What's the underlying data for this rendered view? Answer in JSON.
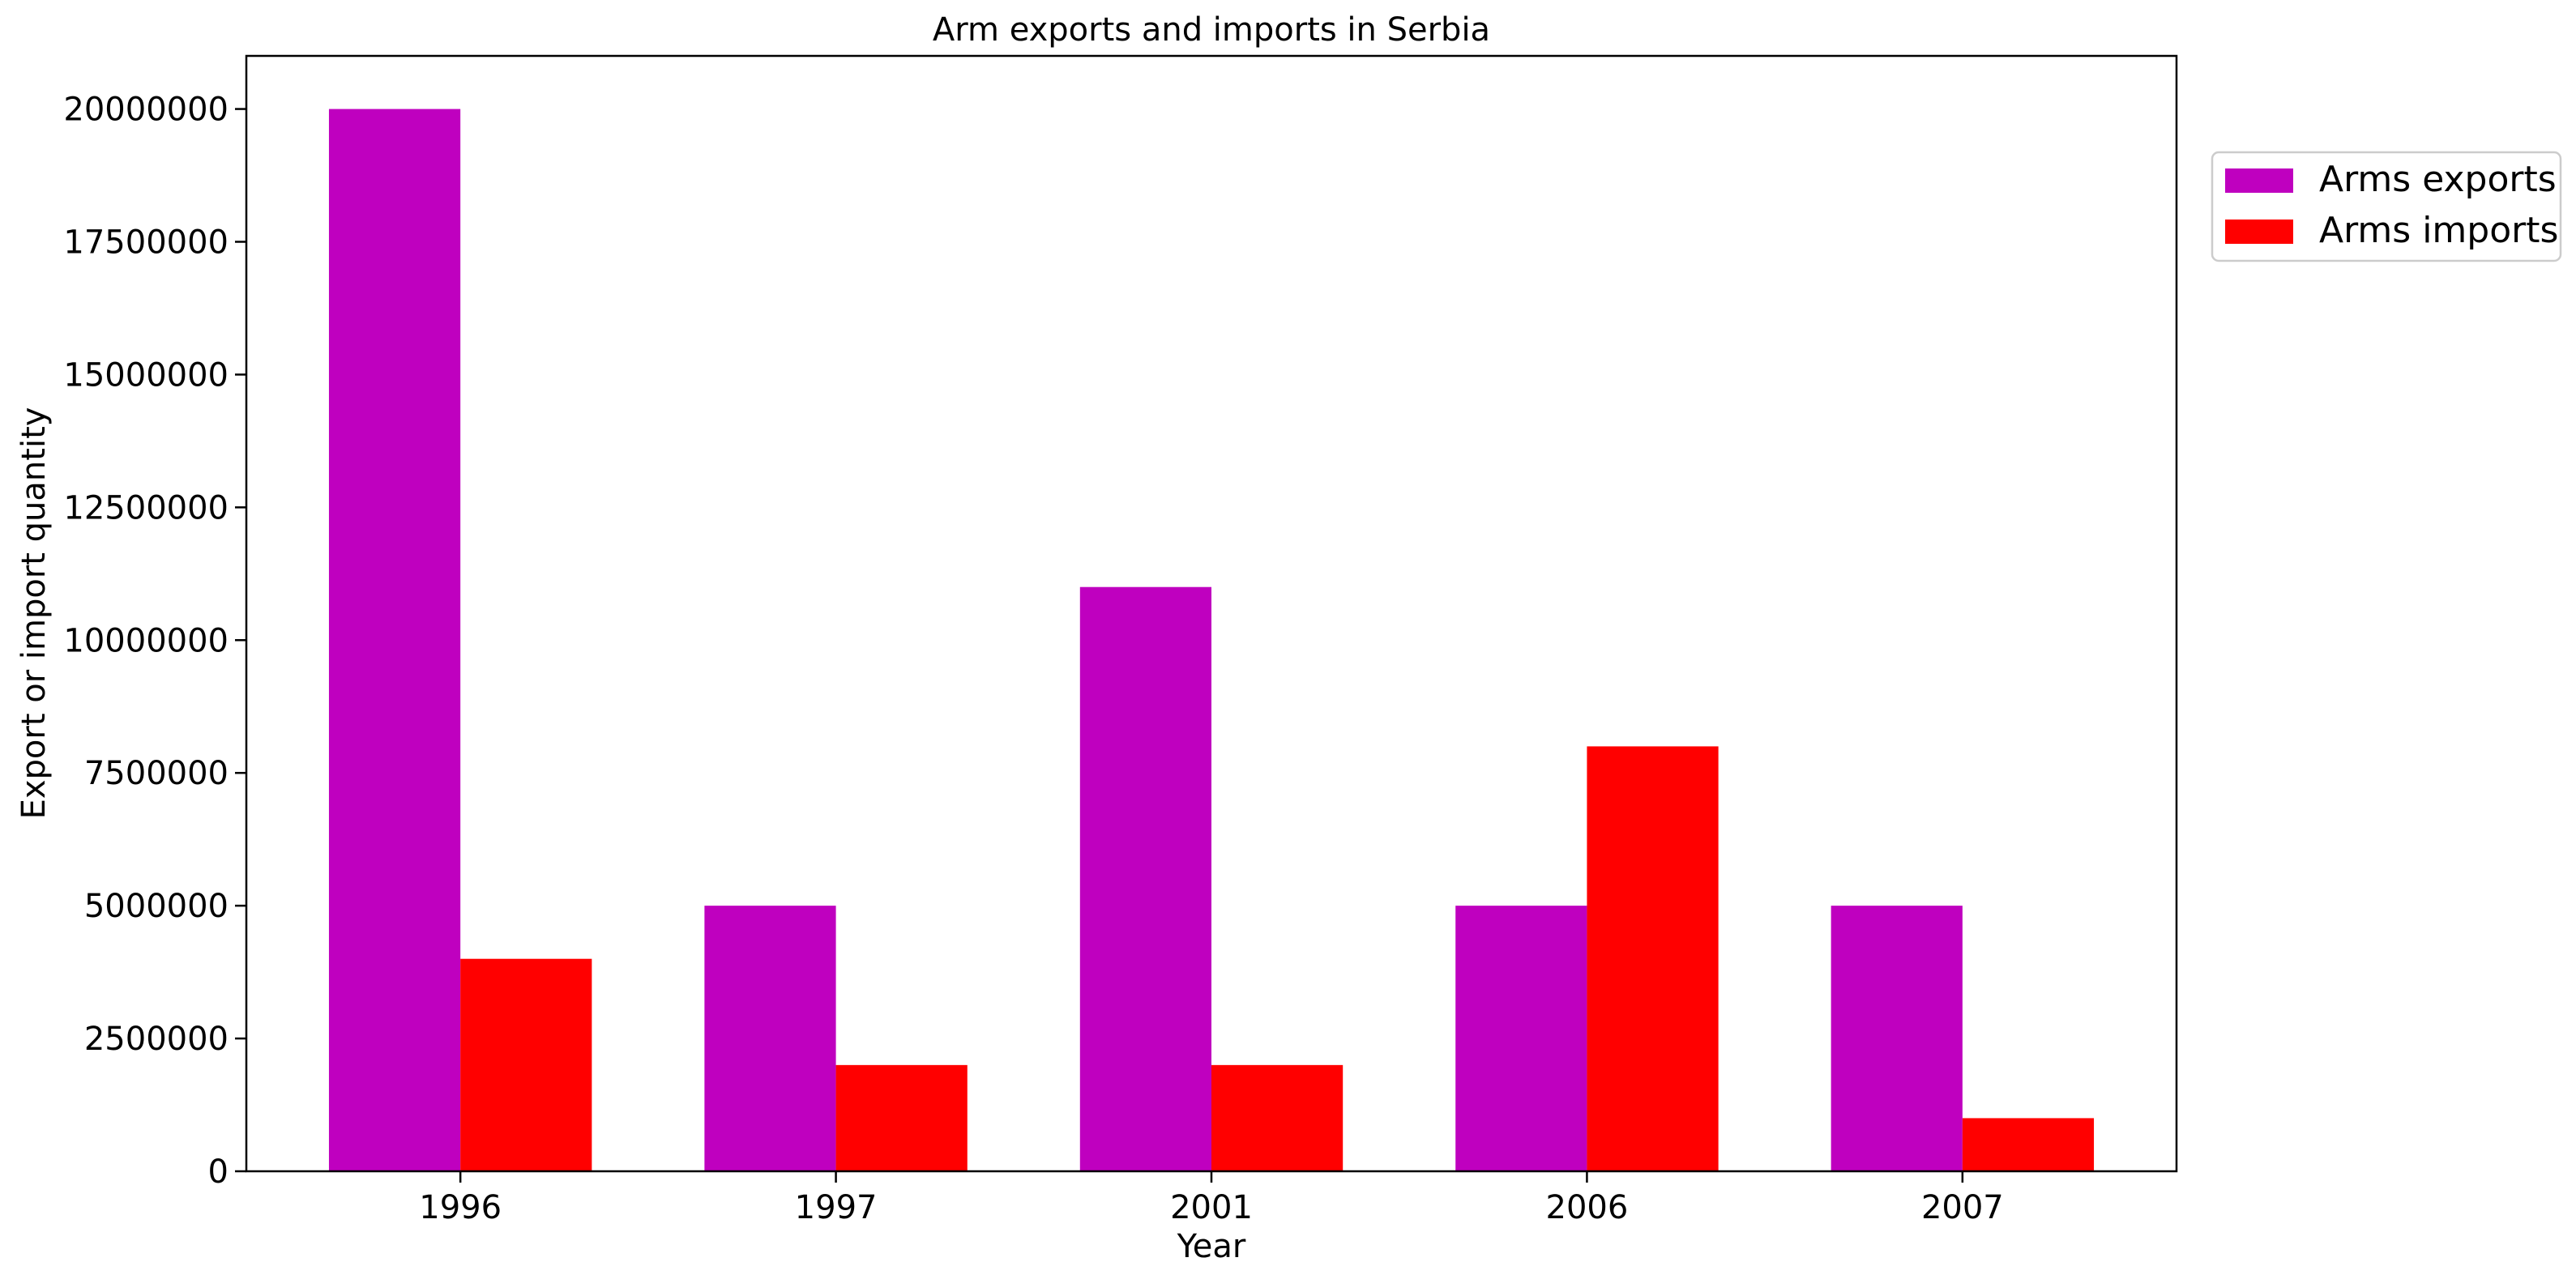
{
  "chart_data": {
    "type": "bar",
    "title": "Arm exports and imports in Serbia",
    "xlabel": "Year",
    "ylabel": "Export or import quantity",
    "categories": [
      "1996",
      "1997",
      "2001",
      "2006",
      "2007"
    ],
    "series": [
      {
        "name": "Arms exports",
        "color": "#bf00bf",
        "values": [
          20000000,
          5000000,
          11000000,
          5000000,
          5000000
        ]
      },
      {
        "name": "Arms imports",
        "color": "#ff0000",
        "values": [
          4000000,
          2000000,
          2000000,
          8000000,
          1000000
        ]
      }
    ],
    "ylim": [
      0,
      21000000
    ],
    "yticks": [
      0,
      2500000,
      5000000,
      7500000,
      10000000,
      12500000,
      15000000,
      17500000,
      20000000
    ],
    "grid": false,
    "legend_position": "outside-top-right"
  }
}
